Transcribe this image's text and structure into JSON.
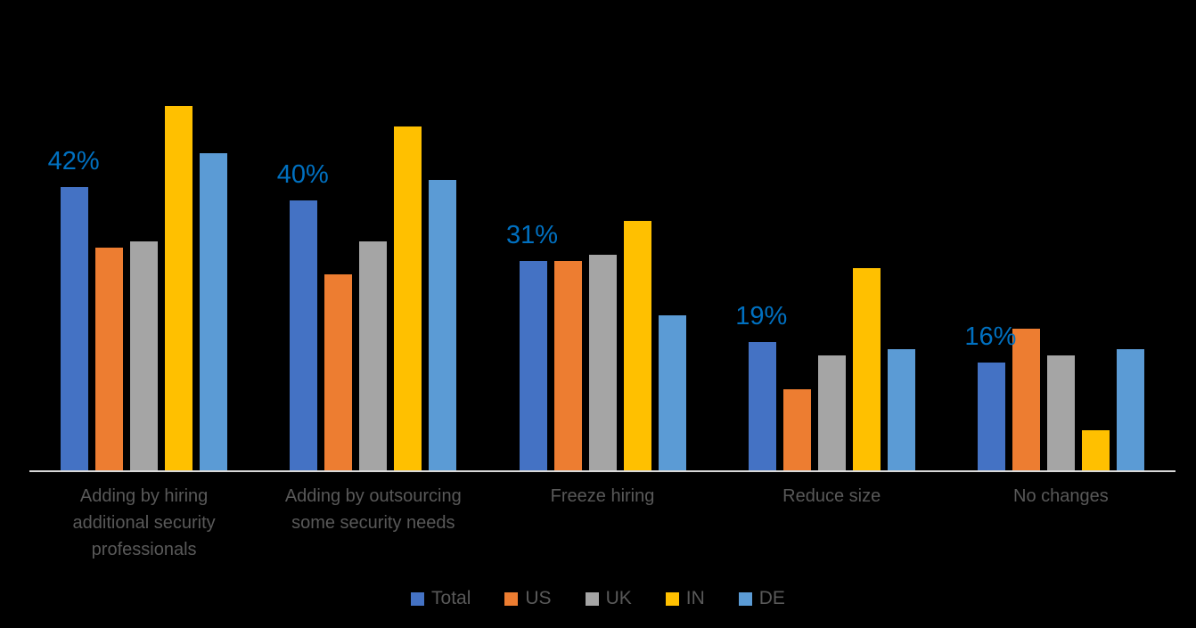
{
  "chart_data": {
    "type": "bar",
    "categories": [
      "Adding by hiring additional security professionals",
      "Adding by outsourcing some security needs",
      "Freeze hiring",
      "Reduce size",
      "No changes"
    ],
    "series": [
      {
        "name": "Total",
        "color": "#4472C4",
        "values": [
          42,
          40,
          31,
          19,
          16
        ]
      },
      {
        "name": "US",
        "color": "#ED7D31",
        "values": [
          33,
          29,
          31,
          12,
          21
        ]
      },
      {
        "name": "UK",
        "color": "#A5A5A5",
        "values": [
          34,
          34,
          32,
          17,
          17
        ]
      },
      {
        "name": "IN",
        "color": "#FFC000",
        "values": [
          54,
          51,
          37,
          30,
          6
        ]
      },
      {
        "name": "DE",
        "color": "#5B9BD5",
        "values": [
          47,
          43,
          23,
          18,
          18
        ]
      }
    ],
    "data_labels": {
      "series": "Total",
      "values": [
        "42%",
        "40%",
        "31%",
        "19%",
        "16%"
      ],
      "color": "#0070C0"
    },
    "value_unit": "%",
    "grid": false,
    "y_axis_visible": false,
    "legend_position": "bottom",
    "axis_line_color": "#D9D9D9",
    "category_label_color": "#595959",
    "background_color": "#000000"
  }
}
